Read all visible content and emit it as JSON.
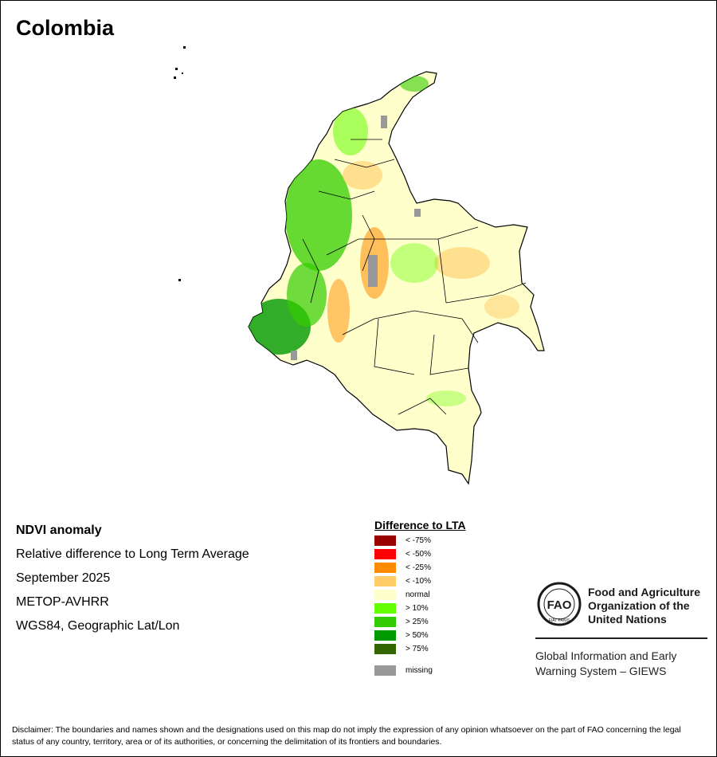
{
  "title": "Colombia",
  "info": {
    "product": "NDVI anomaly",
    "description": "Relative difference to Long Term Average",
    "period": "September 2025",
    "sensor": "METOP-AVHRR",
    "projection": "WGS84, Geographic Lat/Lon"
  },
  "legend": {
    "title": "Difference to LTA",
    "items": [
      {
        "label": "< -75%",
        "color": "#990000"
      },
      {
        "label": "< -50%",
        "color": "#ff0000"
      },
      {
        "label": "< -25%",
        "color": "#ff8c00"
      },
      {
        "label": "< -10%",
        "color": "#ffcc66"
      },
      {
        "label": "normal",
        "color": "#ffffcc"
      },
      {
        "label": "> 10%",
        "color": "#66ff00"
      },
      {
        "label": "> 25%",
        "color": "#33cc00"
      },
      {
        "label": "> 50%",
        "color": "#009900"
      },
      {
        "label": "> 75%",
        "color": "#336600"
      },
      {
        "label": "missing",
        "color": "#999999"
      }
    ]
  },
  "fao": {
    "name_line1": "Food and Agriculture",
    "name_line2": "Organization of the",
    "name_line3": "United Nations",
    "logo_text": "FAO",
    "logo_motto": "FIAT PANIS",
    "giews_line1": "Global Information and Early",
    "giews_line2": "Warning System – GIEWS"
  },
  "disclaimer": "Disclaimer: The boundaries and names shown and the designations used on this map do not imply the expression of any opinion whatsoever on the part of FAO concerning the legal status of any country, territory, area or of its authorities, or concerning the delimitation of its frontiers and boundaries."
}
